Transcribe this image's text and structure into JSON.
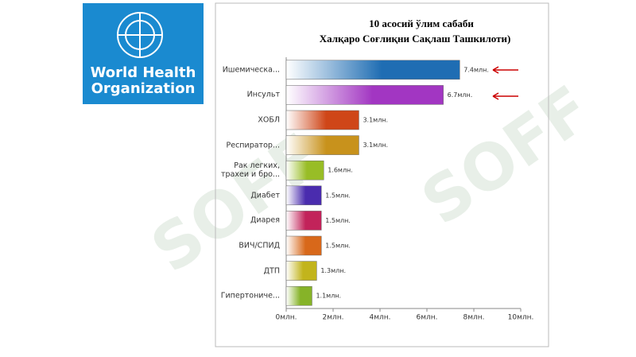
{
  "logo": {
    "line1": "World Health",
    "line2": "Organization"
  },
  "watermark": "SOFF",
  "chart_data": {
    "type": "bar",
    "orientation": "horizontal",
    "title": "10 асосий ўлим сабаби",
    "subtitle": "Халқаро Соғлиқни Сақлаш Ташкилоти)",
    "categories": [
      "Ишемическа...",
      "Инсульт",
      "ХОБЛ",
      "Респиратор...",
      "Рак легких, трахеи и бро...",
      "Диабет",
      "Диарея",
      "ВИЧ/СПИД",
      "ДТП",
      "Гипертониче..."
    ],
    "values": [
      7.4,
      6.7,
      3.1,
      3.1,
      1.6,
      1.5,
      1.5,
      1.5,
      1.3,
      1.1
    ],
    "value_labels": [
      "7.4млн.",
      "6.7млн.",
      "3.1млн.",
      "3.1млн.",
      "1.6млн.",
      "1.5млн.",
      "1.5млн.",
      "1.5млн.",
      "1.3млн.",
      "1.1млн."
    ],
    "colors": [
      "#1f6db3",
      "#a236c2",
      "#cf4618",
      "#c8921c",
      "#98bd26",
      "#4a2cae",
      "#c2235a",
      "#d8681a",
      "#c2b41c",
      "#86b328"
    ],
    "xlim": [
      0,
      10
    ],
    "xticks": [
      {
        "value": 0,
        "label": "0млн."
      },
      {
        "value": 2,
        "label": "2млн."
      },
      {
        "value": 4,
        "label": "4млн."
      },
      {
        "value": 6,
        "label": "6млн."
      },
      {
        "value": 8,
        "label": "8млн."
      },
      {
        "value": 10,
        "label": "10млн."
      }
    ],
    "grid": false
  }
}
